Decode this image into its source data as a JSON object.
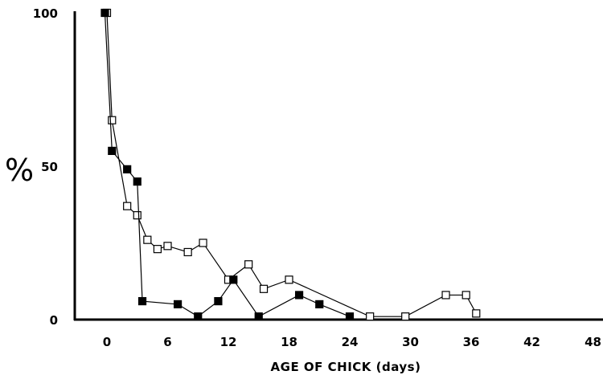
{
  "chart_data": {
    "type": "line",
    "title": "",
    "xlabel": "AGE OF CHICK (days)",
    "ylabel": "%",
    "xlim": [
      0,
      48
    ],
    "ylim": [
      0,
      100
    ],
    "xticks": [
      0,
      6,
      12,
      18,
      24,
      30,
      36,
      42,
      48
    ],
    "yticks": [
      0,
      50,
      100
    ],
    "grid": false,
    "legend": "none",
    "series": [
      {
        "marker": "open-square",
        "color": "#000000",
        "points": [
          {
            "x": 0,
            "y": 100
          },
          {
            "x": 0.5,
            "y": 65
          },
          {
            "x": 2,
            "y": 37
          },
          {
            "x": 3,
            "y": 34
          },
          {
            "x": 4,
            "y": 26
          },
          {
            "x": 5,
            "y": 23
          },
          {
            "x": 6,
            "y": 24
          },
          {
            "x": 8,
            "y": 22
          },
          {
            "x": 9.5,
            "y": 25
          },
          {
            "x": 12,
            "y": 13
          },
          {
            "x": 14,
            "y": 18
          },
          {
            "x": 15.5,
            "y": 10
          },
          {
            "x": 18,
            "y": 13
          },
          {
            "x": 26,
            "y": 1
          },
          {
            "x": 29.5,
            "y": 1
          },
          {
            "x": 33.5,
            "y": 8
          },
          {
            "x": 35.5,
            "y": 8
          },
          {
            "x": 36.5,
            "y": 2
          }
        ]
      },
      {
        "marker": "filled-square",
        "color": "#000000",
        "points": [
          {
            "x": -0.2,
            "y": 100
          },
          {
            "x": 0.5,
            "y": 55
          },
          {
            "x": 2,
            "y": 49
          },
          {
            "x": 3,
            "y": 45
          },
          {
            "x": 3.5,
            "y": 6
          },
          {
            "x": 7,
            "y": 5
          },
          {
            "x": 9,
            "y": 1
          },
          {
            "x": 11,
            "y": 6
          },
          {
            "x": 12.5,
            "y": 13
          },
          {
            "x": 15,
            "y": 1
          },
          {
            "x": 19,
            "y": 8
          },
          {
            "x": 21,
            "y": 5
          },
          {
            "x": 24,
            "y": 1
          }
        ]
      }
    ]
  }
}
